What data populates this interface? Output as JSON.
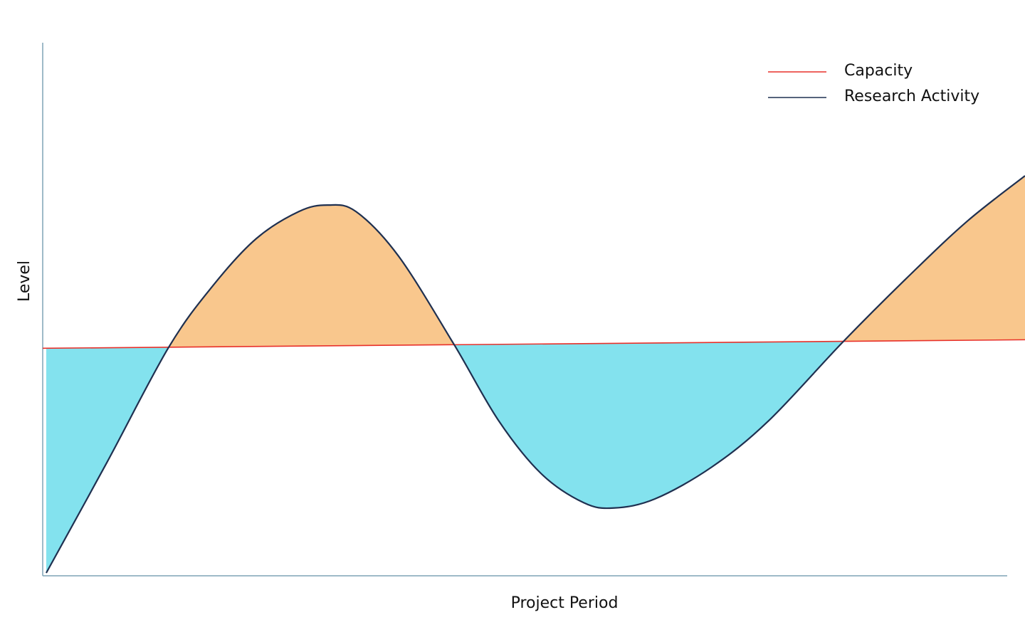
{
  "chart_data": {
    "type": "line",
    "xlabel": "Project Period",
    "ylabel": "Level",
    "xlim": [
      0,
      100
    ],
    "ylim": [
      0,
      100
    ],
    "above_color": "#f9c78d",
    "below_color": "#83e2ee",
    "legend": "upper right",
    "series": [
      {
        "name": "Capacity",
        "color": "#e8302a",
        "x": [
          0,
          100
        ],
        "values": [
          42.6,
          44.2
        ]
      },
      {
        "name": "Research Activity",
        "color": "#1f3050",
        "x": [
          0.36,
          6.52,
          12.83,
          17.39,
          21.74,
          26.09,
          28.99,
          31.88,
          36.23,
          41.88,
          46.38,
          50.72,
          55.07,
          58.12,
          62.32,
          68.12,
          73.91,
          81.52,
          88.41,
          94.2,
          100
        ],
        "values": [
          0.4,
          21.1,
          42.8,
          54.5,
          63.2,
          68.3,
          69.5,
          68.3,
          59.9,
          43.3,
          29.1,
          19.1,
          13.6,
          12.6,
          14.3,
          20.3,
          29.0,
          43.9,
          56.6,
          66.6,
          75.0
        ]
      }
    ]
  }
}
